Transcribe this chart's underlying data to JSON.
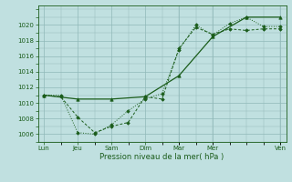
{
  "title": "",
  "xlabel": "Pression niveau de la mer( hPa )",
  "ylabel": "",
  "bg_color": "#c0e0e0",
  "grid_color": "#90b8b8",
  "line_color": "#1a5c1a",
  "xtick_labels": [
    "Lun",
    "Jeu",
    "Sam",
    "Dim",
    "Mar",
    "Mer",
    "Ven"
  ],
  "xtick_positions": [
    0,
    0.857,
    1.714,
    2.571,
    3.429,
    4.286,
    6.0
  ],
  "ylim": [
    1005.0,
    1022.5
  ],
  "yticks": [
    1006,
    1008,
    1010,
    1012,
    1014,
    1016,
    1018,
    1020
  ],
  "line1_x": [
    0,
    0.43,
    0.857,
    1.29,
    1.714,
    2.14,
    2.571,
    3.0,
    3.429,
    3.857,
    4.286,
    4.714,
    5.14,
    5.57,
    6.0
  ],
  "line1_y": [
    1011.0,
    1010.8,
    1008.2,
    1006.2,
    1007.0,
    1007.5,
    1010.8,
    1010.5,
    1017.0,
    1019.7,
    1018.8,
    1019.5,
    1019.3,
    1019.5,
    1019.5
  ],
  "line2_x": [
    0,
    0.43,
    0.857,
    1.29,
    1.714,
    2.14,
    2.571,
    3.0,
    3.429,
    3.857,
    4.286,
    4.714,
    5.14,
    5.57,
    6.0
  ],
  "line2_y": [
    1011.0,
    1011.0,
    1006.2,
    1006.0,
    1007.2,
    1009.0,
    1010.5,
    1011.2,
    1016.8,
    1020.0,
    1018.7,
    1020.2,
    1021.0,
    1019.8,
    1019.8
  ],
  "line3_x": [
    0,
    0.857,
    1.714,
    2.571,
    3.429,
    4.286,
    5.14,
    6.0
  ],
  "line3_y": [
    1011.0,
    1010.5,
    1010.5,
    1010.8,
    1013.5,
    1018.5,
    1021.0,
    1021.0
  ],
  "figsize": [
    3.2,
    2.0
  ],
  "dpi": 100
}
